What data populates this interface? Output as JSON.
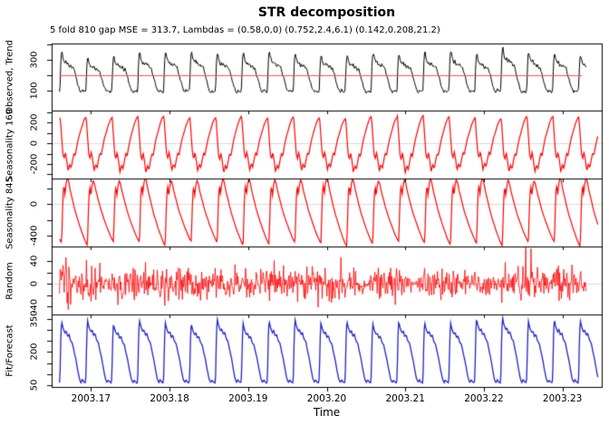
{
  "chart_data": {
    "type": "line",
    "title": "STR decomposition",
    "subtitle": "5 fold 810 gap MSE = 313.7, Lambdas = (0.58,0,0) (0.752,2.4,6.1) (0.142,0.208,21.2)",
    "xlabel": "Time",
    "x_domain": [
      2003.165,
      2003.235
    ],
    "x_ticks": [
      {
        "v": 2003.17,
        "t": "2003.17"
      },
      {
        "v": 2003.18,
        "t": "2003.18"
      },
      {
        "v": 2003.19,
        "t": "2003.19"
      },
      {
        "v": 2003.2,
        "t": "2003.20"
      },
      {
        "v": 2003.21,
        "t": "2003.21"
      },
      {
        "v": 2003.22,
        "t": "2003.22"
      },
      {
        "v": 2003.23,
        "t": "2003.23"
      }
    ],
    "period": 0.0033,
    "colors": {
      "observed": "#000000",
      "seasonal": "#ff0000",
      "random": "#ff0000",
      "fit": "#2121cd",
      "trend": "#ff5050",
      "zero_line": "#d8d8d8",
      "frame": "#000000"
    },
    "panels": [
      {
        "label": "Observed, Trend",
        "kind": "cyclic",
        "color": "#000000",
        "line_width": 1,
        "y_domain": [
          -30,
          405
        ],
        "y_ticks": [
          {
            "v": 100,
            "t": "100"
          },
          {
            "v": 200,
            "t": ""
          },
          {
            "v": 300,
            "t": "300"
          },
          {
            "v": 400,
            "t": ""
          }
        ],
        "zero_line": false,
        "trend": {
          "value": 200,
          "x_start": 2003.166,
          "x_end": 2003.2325
        },
        "x_start": 2003.166,
        "x_end": 2003.233,
        "phase_offset": 0,
        "scale_base": 92,
        "noise_sd": 6,
        "peak_var": 0.09,
        "special": {
          "cycle": 17,
          "mul": 1.16
        },
        "seed": 11,
        "template": [
          [
            0,
            92
          ],
          [
            0.02,
            118
          ],
          [
            0.045,
            250
          ],
          [
            0.07,
            322
          ],
          [
            0.1,
            336
          ],
          [
            0.13,
            305
          ],
          [
            0.17,
            282
          ],
          [
            0.21,
            268
          ],
          [
            0.25,
            280
          ],
          [
            0.29,
            258
          ],
          [
            0.33,
            272
          ],
          [
            0.38,
            248
          ],
          [
            0.43,
            262
          ],
          [
            0.48,
            240
          ],
          [
            0.53,
            246
          ],
          [
            0.58,
            215
          ],
          [
            0.63,
            185
          ],
          [
            0.68,
            155
          ],
          [
            0.73,
            122
          ],
          [
            0.78,
            100
          ],
          [
            0.83,
            90
          ],
          [
            0.88,
            102
          ],
          [
            0.93,
            94
          ],
          [
            1,
            92
          ]
        ]
      },
      {
        "label": "Seasonality 169",
        "kind": "cyclic",
        "color": "#ff0000",
        "line_width": 1.2,
        "y_domain": [
          -340,
          315
        ],
        "y_ticks": [
          {
            "v": -300,
            "t": ""
          },
          {
            "v": -200,
            "t": "-200"
          },
          {
            "v": -100,
            "t": ""
          },
          {
            "v": 0,
            "t": "0"
          },
          {
            "v": 100,
            "t": ""
          },
          {
            "v": 200,
            "t": "200"
          },
          {
            "v": 300,
            "t": ""
          }
        ],
        "zero_line": true,
        "x_start": 2003.166,
        "x_end": 2003.2345,
        "phase_offset": 0.03,
        "scale_base": 0,
        "noise_sd": 2,
        "peak_var": 0.06,
        "seed": 23,
        "template": [
          [
            0,
            252
          ],
          [
            0.05,
            70
          ],
          [
            0.1,
            -110
          ],
          [
            0.15,
            -150
          ],
          [
            0.19,
            -85
          ],
          [
            0.24,
            -150
          ],
          [
            0.3,
            -272
          ],
          [
            0.36,
            -205
          ],
          [
            0.42,
            -240
          ],
          [
            0.48,
            -155
          ],
          [
            0.53,
            -95
          ],
          [
            0.58,
            -118
          ],
          [
            0.63,
            -40
          ],
          [
            0.7,
            45
          ],
          [
            0.78,
            115
          ],
          [
            0.86,
            185
          ],
          [
            0.94,
            236
          ],
          [
            1,
            252
          ]
        ]
      },
      {
        "label": "Seasonality 845",
        "kind": "cyclic",
        "color": "#ff0000",
        "line_width": 1.2,
        "y_domain": [
          -540,
          330
        ],
        "y_ticks": [
          {
            "v": 200,
            "t": ""
          },
          {
            "v": 0,
            "t": "0"
          },
          {
            "v": -200,
            "t": ""
          },
          {
            "v": -400,
            "t": "-400"
          }
        ],
        "zero_line": true,
        "x_start": 2003.166,
        "x_end": 2003.2345,
        "phase_offset": 0.08,
        "scale_base": 0,
        "noise_sd": 3,
        "peak_var": 0.07,
        "seed": 37,
        "template": [
          [
            0,
            -505
          ],
          [
            0.03,
            -150
          ],
          [
            0.06,
            150
          ],
          [
            0.095,
            235
          ],
          [
            0.13,
            110
          ],
          [
            0.17,
            245
          ],
          [
            0.22,
            325
          ],
          [
            0.27,
            280
          ],
          [
            0.33,
            175
          ],
          [
            0.41,
            70
          ],
          [
            0.49,
            -40
          ],
          [
            0.57,
            -135
          ],
          [
            0.65,
            -215
          ],
          [
            0.73,
            -295
          ],
          [
            0.81,
            -365
          ],
          [
            0.89,
            -435
          ],
          [
            0.95,
            -480
          ],
          [
            1,
            -505
          ]
        ]
      },
      {
        "label": "Random",
        "kind": "noise",
        "color": "#ff0000",
        "line_width": 0.8,
        "y_domain": [
          -54,
          66
        ],
        "y_ticks": [
          {
            "v": -40,
            "t": "-40"
          },
          {
            "v": -20,
            "t": ""
          },
          {
            "v": 0,
            "t": "0"
          },
          {
            "v": 20,
            "t": ""
          },
          {
            "v": 40,
            "t": "40"
          }
        ],
        "zero_line": true,
        "x_start": 2003.166,
        "x_end": 2003.233,
        "sd": 13,
        "env_var": 0.3,
        "spike_p": 0.012,
        "spike_mul": 2.6,
        "burst": {
          "px": 14,
          "offset": 30,
          "amp_mul": 1.8
        },
        "seed": 51
      },
      {
        "label": "Fit/Forecast",
        "kind": "cyclic",
        "color": "#2121cd",
        "line_width": 1.3,
        "y_domain": [
          42,
          370
        ],
        "y_ticks": [
          {
            "v": 50,
            "t": "50"
          },
          {
            "v": 100,
            "t": ""
          },
          {
            "v": 150,
            "t": ""
          },
          {
            "v": 200,
            "t": "200"
          },
          {
            "v": 250,
            "t": ""
          },
          {
            "v": 300,
            "t": ""
          },
          {
            "v": 350,
            "t": "350"
          }
        ],
        "zero_line": false,
        "x_start": 2003.166,
        "x_end": 2003.2345,
        "phase_offset": 0,
        "scale_base": 60,
        "noise_sd": 1.2,
        "peak_var": 0.05,
        "special": {
          "cycle": 17,
          "mul": 1.06
        },
        "seed": 67,
        "template": [
          [
            0,
            60
          ],
          [
            0.02,
            95
          ],
          [
            0.05,
            265
          ],
          [
            0.08,
            342
          ],
          [
            0.115,
            320
          ],
          [
            0.16,
            302
          ],
          [
            0.21,
            288
          ],
          [
            0.26,
            296
          ],
          [
            0.31,
            272
          ],
          [
            0.37,
            280
          ],
          [
            0.43,
            252
          ],
          [
            0.5,
            240
          ],
          [
            0.56,
            205
          ],
          [
            0.63,
            168
          ],
          [
            0.7,
            120
          ],
          [
            0.77,
            78
          ],
          [
            0.83,
            62
          ],
          [
            0.88,
            74
          ],
          [
            0.94,
            64
          ],
          [
            1,
            60
          ]
        ]
      }
    ]
  }
}
